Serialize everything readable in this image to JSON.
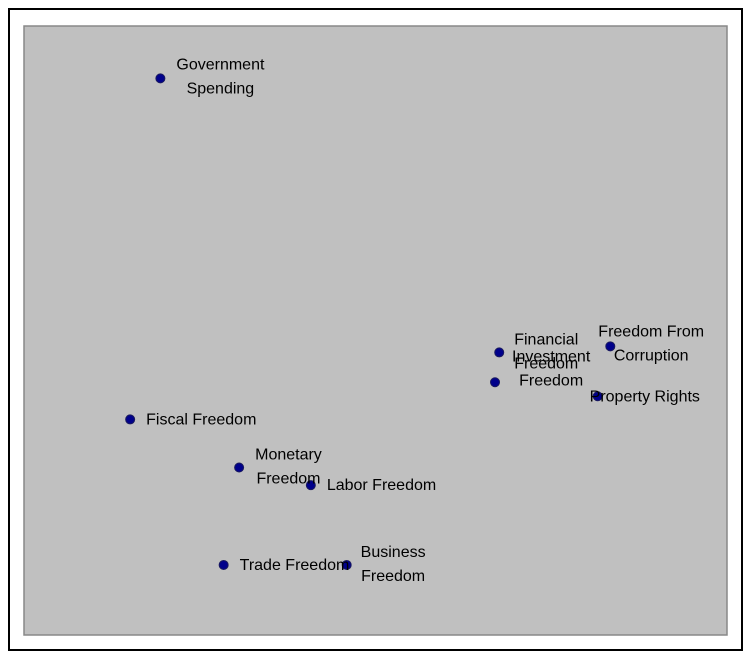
{
  "colors": {
    "plot_background": "#c0c0c0",
    "plot_border": "#888888",
    "marker_fill": "#00008b",
    "marker_stroke": "#1a1a5e"
  },
  "chart_data": {
    "type": "scatter",
    "title": "",
    "xlabel": "",
    "ylabel": "",
    "grid": false,
    "axes_visible": false,
    "xlim": [
      0,
      100
    ],
    "ylim": [
      0,
      100
    ],
    "points": [
      {
        "label_lines": [
          "Government",
          "Spending"
        ],
        "x": 19.4,
        "y": 91.4
      },
      {
        "label_lines": [
          "Fiscal Freedom"
        ],
        "x": 15.1,
        "y": 35.4
      },
      {
        "label_lines": [
          "Monetary",
          "Freedom"
        ],
        "x": 30.6,
        "y": 27.5
      },
      {
        "label_lines": [
          "Labor Freedom"
        ],
        "x": 40.8,
        "y": 24.6
      },
      {
        "label_lines": [
          "Trade Freedom"
        ],
        "x": 28.4,
        "y": 11.5
      },
      {
        "label_lines": [
          "Business",
          "Freedom"
        ],
        "x": 45.9,
        "y": 11.5
      },
      {
        "label_lines": [
          "Financial",
          "Freedom"
        ],
        "x": 67.6,
        "y": 46.4
      },
      {
        "label_lines": [
          "Investment",
          "Freedom"
        ],
        "x": 67.0,
        "y": 41.5
      },
      {
        "label_lines": [
          "Freedom From",
          "Corruption"
        ],
        "x": 83.4,
        "y": 47.4
      },
      {
        "label_lines": [
          "Property Rights"
        ],
        "x": 81.6,
        "y": 39.2
      }
    ]
  }
}
